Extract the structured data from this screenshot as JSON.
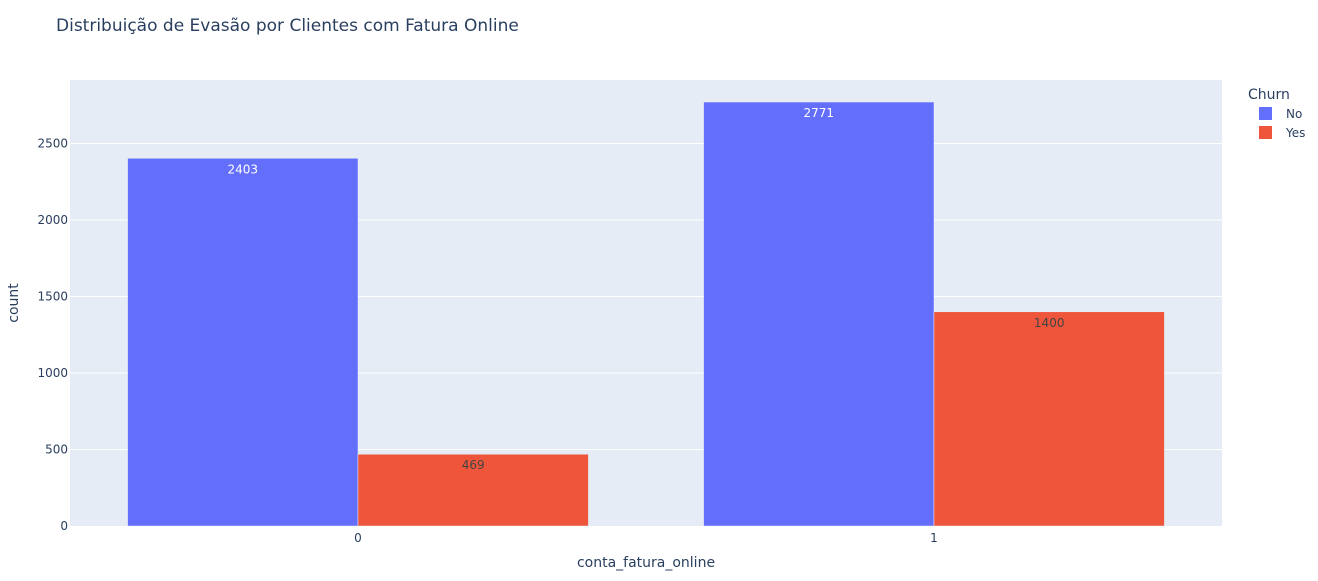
{
  "chart_data": {
    "type": "bar",
    "title": "Distribuição de Evasão por Clientes com Fatura Online",
    "xlabel": "conta_fatura_online",
    "ylabel": "count",
    "categories": [
      "0",
      "1"
    ],
    "series": [
      {
        "name": "No",
        "values": [
          2403,
          2771
        ],
        "color": "#636efa",
        "label_color": "#ffffff"
      },
      {
        "name": "Yes",
        "values": [
          469,
          1400
        ],
        "color": "#ef553b",
        "label_color": "#444444"
      }
    ],
    "ylim": [
      0,
      2915
    ],
    "yticks": [
      0,
      500,
      1000,
      1500,
      2000,
      2500
    ],
    "legend": {
      "title": "Churn",
      "placement": "top-right"
    },
    "grid": true,
    "colors": {
      "plot_bg": "#e5ecf6",
      "grid": "#ffffff",
      "text": "#2a3f5f"
    }
  }
}
